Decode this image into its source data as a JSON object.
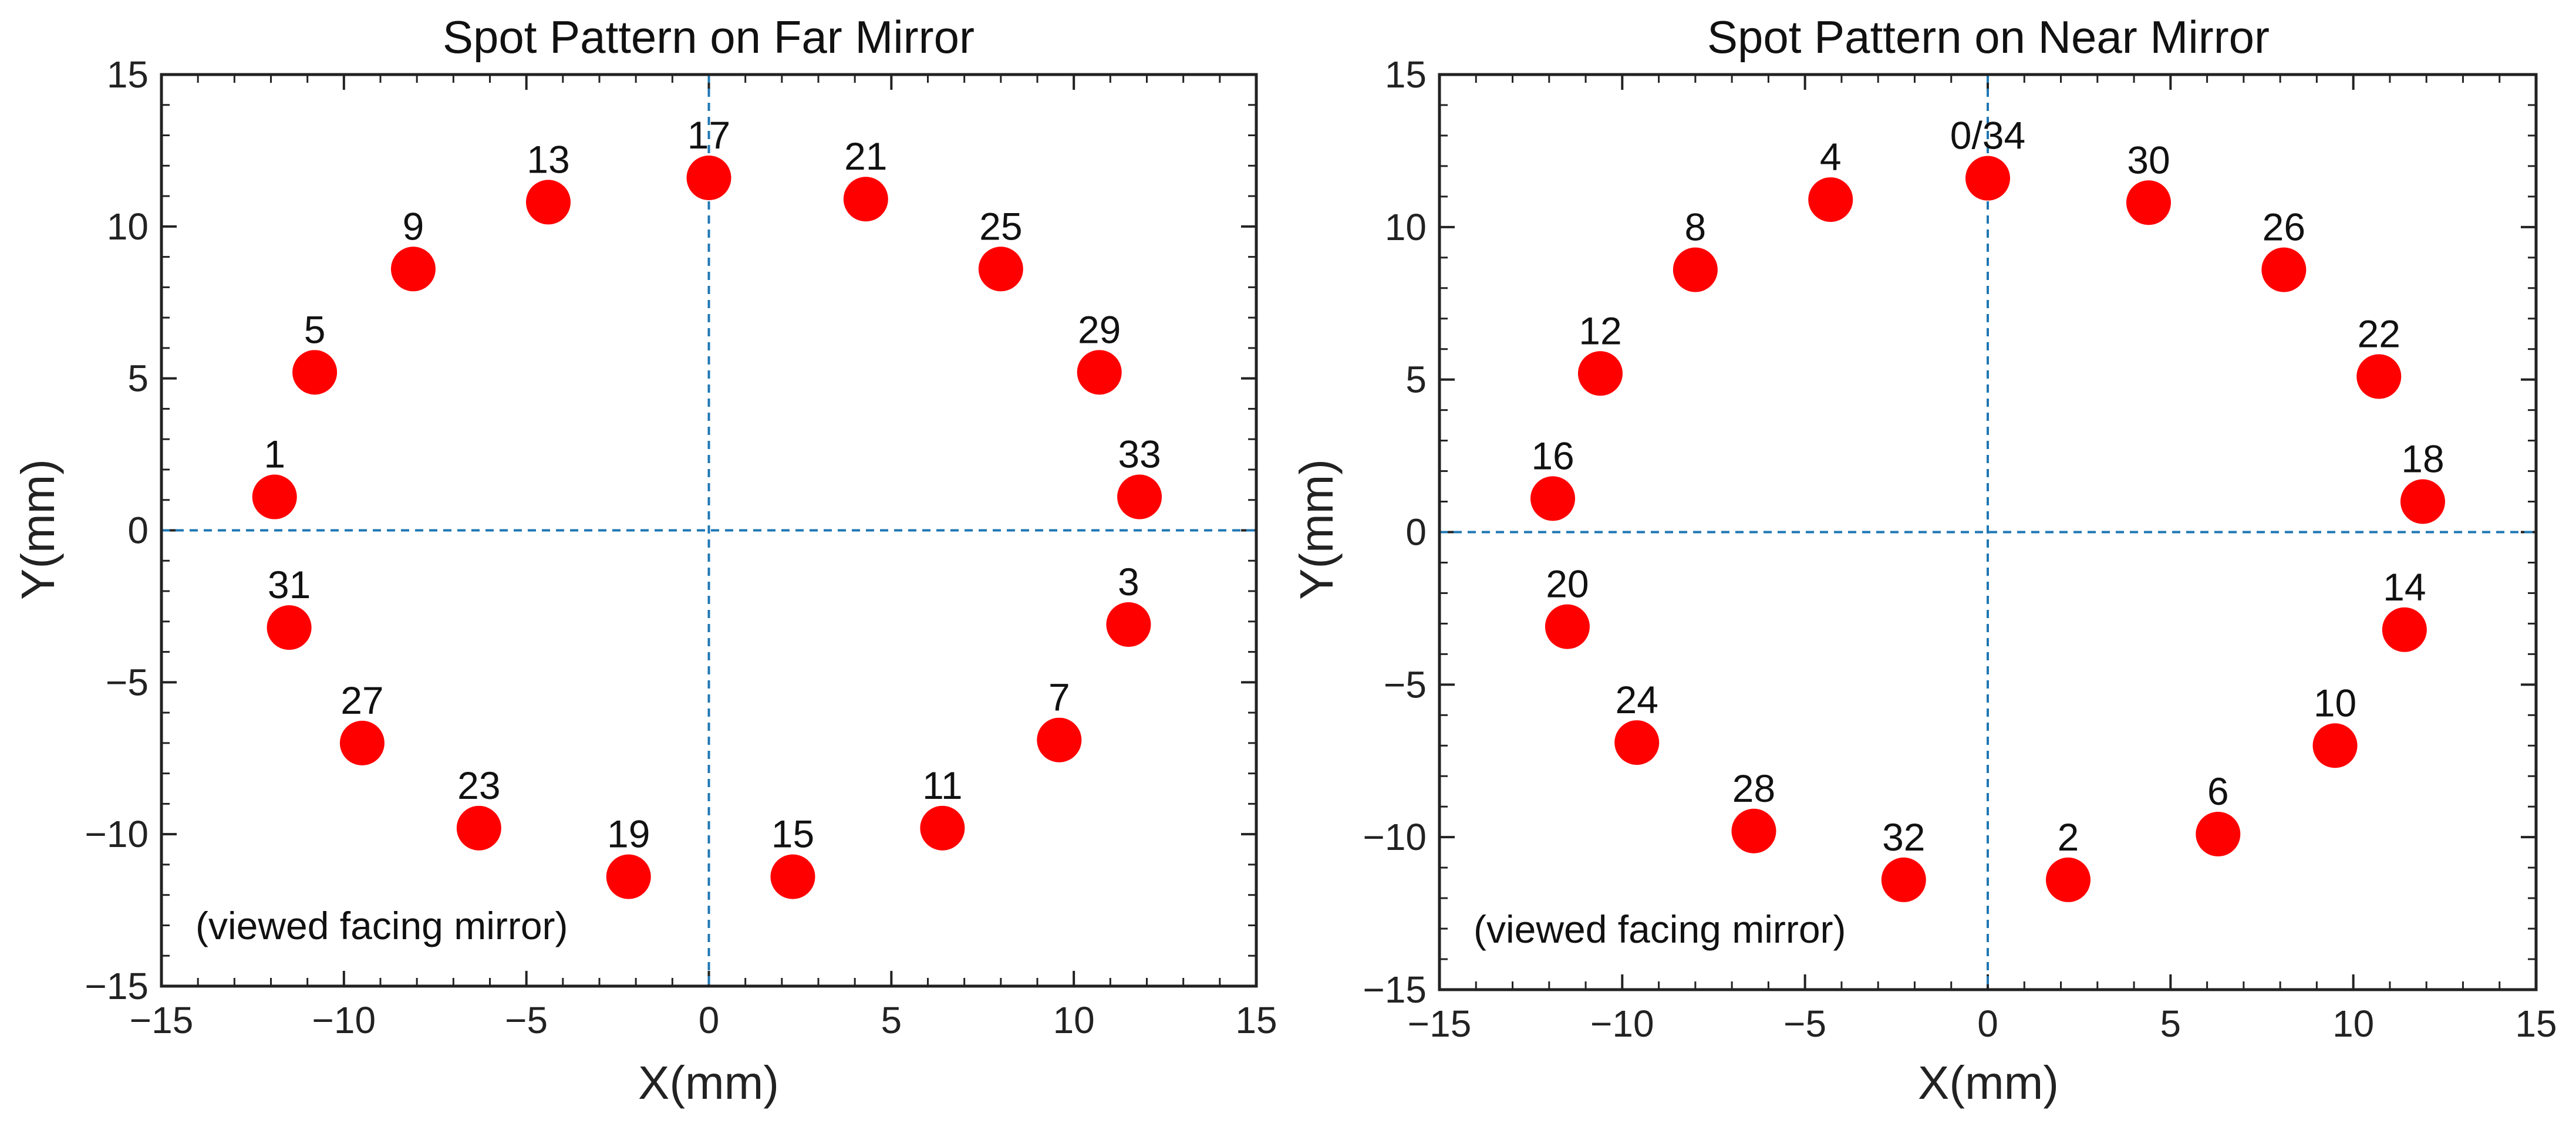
{
  "chart_data": [
    {
      "type": "scatter",
      "title": "Spot Pattern on Far Mirror",
      "xlabel": "X(mm)",
      "ylabel": "Y(mm)",
      "xlim": [
        -15,
        15
      ],
      "ylim": [
        -15,
        15
      ],
      "xticks": [
        -15,
        -10,
        -5,
        0,
        5,
        10,
        15
      ],
      "yticks": [
        -15,
        -10,
        -5,
        0,
        5,
        10,
        15
      ],
      "xtick_labels": [
        "−15",
        "−10",
        "−5",
        "0",
        "5",
        "10",
        "15"
      ],
      "ytick_labels": [
        "−15",
        "−10",
        "−5",
        "0",
        "5",
        "10",
        "15"
      ],
      "reference_lines": {
        "x": 0,
        "y": 0
      },
      "annotation": "(viewed facing mirror)",
      "color": "#ff0000",
      "points": [
        {
          "label": "17",
          "x": 0.0,
          "y": 11.6
        },
        {
          "label": "21",
          "x": 4.3,
          "y": 10.9
        },
        {
          "label": "25",
          "x": 8.0,
          "y": 8.6
        },
        {
          "label": "29",
          "x": 10.7,
          "y": 5.2
        },
        {
          "label": "33",
          "x": 11.8,
          "y": 1.1
        },
        {
          "label": "3",
          "x": 11.5,
          "y": -3.1
        },
        {
          "label": "7",
          "x": 9.6,
          "y": -6.9
        },
        {
          "label": "11",
          "x": 6.4,
          "y": -9.8
        },
        {
          "label": "15",
          "x": 2.3,
          "y": -11.4
        },
        {
          "label": "19",
          "x": -2.2,
          "y": -11.4
        },
        {
          "label": "23",
          "x": -6.3,
          "y": -9.8
        },
        {
          "label": "27",
          "x": -9.5,
          "y": -7.0
        },
        {
          "label": "31",
          "x": -11.5,
          "y": -3.2
        },
        {
          "label": "1",
          "x": -11.9,
          "y": 1.1
        },
        {
          "label": "5",
          "x": -10.8,
          "y": 5.2
        },
        {
          "label": "9",
          "x": -8.1,
          "y": 8.6
        },
        {
          "label": "13",
          "x": -4.4,
          "y": 10.8
        }
      ]
    },
    {
      "type": "scatter",
      "title": "Spot Pattern on Near Mirror",
      "xlabel": "X(mm)",
      "ylabel": "Y(mm)",
      "xlim": [
        -15,
        15
      ],
      "ylim": [
        -15,
        15
      ],
      "xticks": [
        -15,
        -10,
        -5,
        0,
        5,
        10,
        15
      ],
      "yticks": [
        -15,
        -10,
        -5,
        0,
        5,
        10,
        15
      ],
      "xtick_labels": [
        "−15",
        "−10",
        "−5",
        "0",
        "5",
        "10",
        "15"
      ],
      "ytick_labels": [
        "−15",
        "−10",
        "−5",
        "0",
        "5",
        "10",
        "15"
      ],
      "reference_lines": {
        "x": 0,
        "y": 0
      },
      "annotation": "(viewed facing mirror)",
      "color": "#ff0000",
      "points": [
        {
          "label": "0/34",
          "x": 0.0,
          "y": 11.6
        },
        {
          "label": "30",
          "x": 4.4,
          "y": 10.8
        },
        {
          "label": "26",
          "x": 8.1,
          "y": 8.6
        },
        {
          "label": "22",
          "x": 10.7,
          "y": 5.1
        },
        {
          "label": "18",
          "x": 11.9,
          "y": 1.0
        },
        {
          "label": "14",
          "x": 11.4,
          "y": -3.2
        },
        {
          "label": "10",
          "x": 9.5,
          "y": -7.0
        },
        {
          "label": "6",
          "x": 6.3,
          "y": -9.9
        },
        {
          "label": "2",
          "x": 2.2,
          "y": -11.4
        },
        {
          "label": "32",
          "x": -2.3,
          "y": -11.4
        },
        {
          "label": "28",
          "x": -6.4,
          "y": -9.8
        },
        {
          "label": "24",
          "x": -9.6,
          "y": -6.9
        },
        {
          "label": "20",
          "x": -11.5,
          "y": -3.1
        },
        {
          "label": "16",
          "x": -11.9,
          "y": 1.1
        },
        {
          "label": "12",
          "x": -10.6,
          "y": 5.2
        },
        {
          "label": "8",
          "x": -8.0,
          "y": 8.6
        },
        {
          "label": "4",
          "x": -4.3,
          "y": 10.9
        }
      ]
    }
  ]
}
